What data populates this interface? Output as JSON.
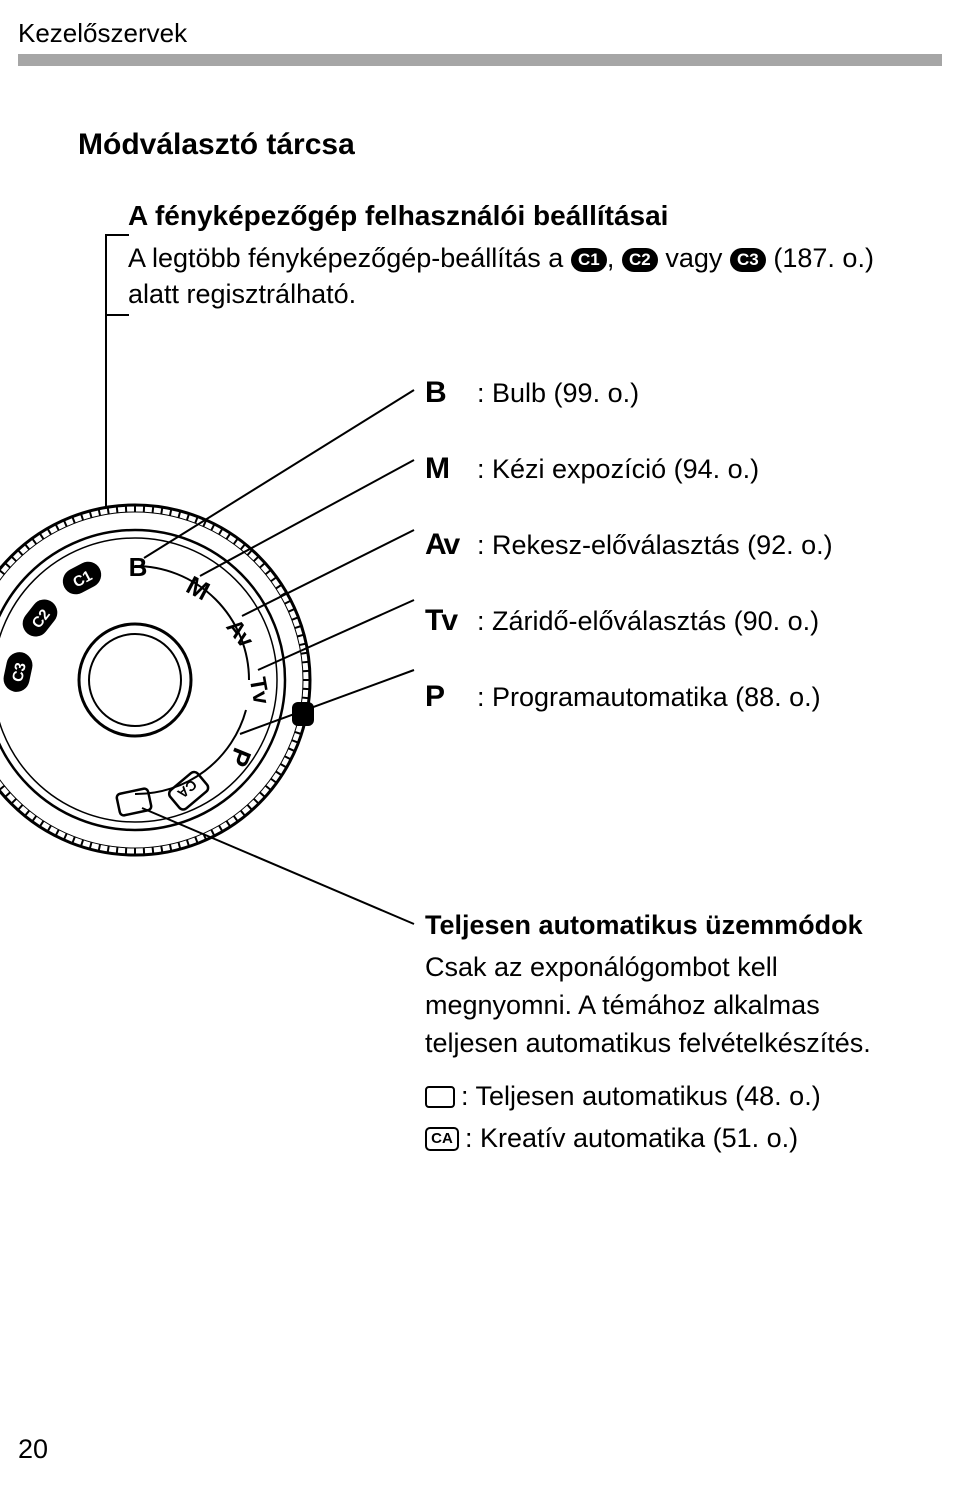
{
  "header": {
    "label": "Kezelőszervek"
  },
  "section": {
    "title": "Módválasztó tárcsa"
  },
  "usersettings": {
    "heading": "A fényképezőgép felhasználói beállításai",
    "body_prefix": "A legtöbb fényképezőgép-beállítás a ",
    "c1": "C1",
    "comma": ", ",
    "c2": "C2",
    "body_mid": " vagy ",
    "c3": "C3",
    "body_suffix": " (187. o.) alatt regisztrálható."
  },
  "modes": [
    {
      "sym": "B",
      "desc": ": Bulb (99. o.)"
    },
    {
      "sym": "M",
      "desc": ": Kézi expozíció (94. o.)"
    },
    {
      "sym": "Av",
      "desc": ": Rekesz-előválasztás (92. o.)"
    },
    {
      "sym": "Tv",
      "desc": ": Záridő-előválasztás (90. o.)"
    },
    {
      "sym": "P",
      "desc": ": Programautomatika (88. o.)"
    }
  ],
  "auto": {
    "heading": "Teljesen automatikus üzemmódok",
    "body": "Csak az exponálógombot kell megnyomni. A témához alkalmas teljesen automatikus felvételkészítés.",
    "line1": ": Teljesen automatikus (48. o.)",
    "line2": ": Kreatív automatika (51. o.)",
    "ca_label": "CA"
  },
  "dial": {
    "labels": {
      "B": "B",
      "M": "M",
      "Av": "Av",
      "Tv": "Tv",
      "P": "P",
      "CA": "CA",
      "C1": "C1",
      "C2": "C2",
      "C3": "C3"
    }
  },
  "page_number": "20"
}
